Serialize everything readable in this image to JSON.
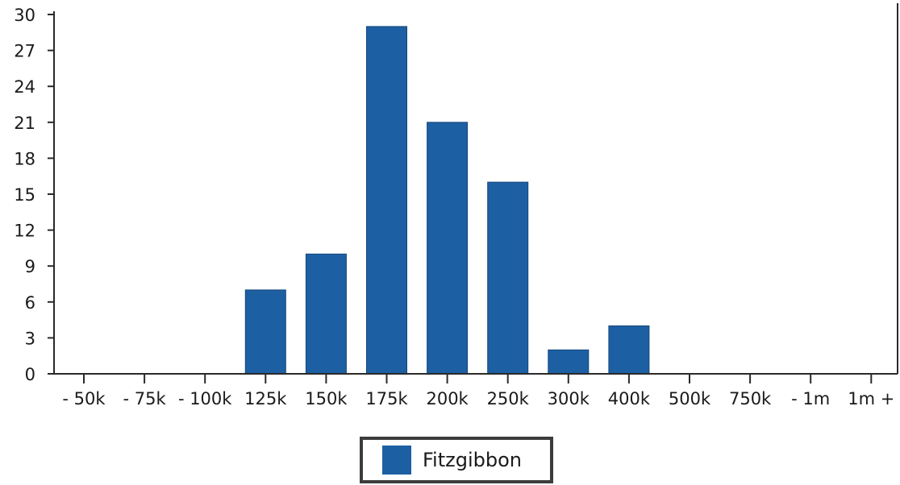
{
  "chart_data": {
    "type": "bar",
    "categories": [
      "- 50k",
      "- 75k",
      "- 100k",
      "125k",
      "150k",
      "175k",
      "200k",
      "250k",
      "300k",
      "400k",
      "500k",
      "750k",
      "- 1m",
      "1m +"
    ],
    "series": [
      {
        "name": "Fitzgibbon",
        "values": [
          0,
          0,
          0,
          7,
          10,
          29,
          21,
          16,
          2,
          4,
          0,
          0,
          0,
          0
        ]
      }
    ],
    "ylim": [
      0,
      30
    ],
    "yticks": [
      0,
      3,
      6,
      9,
      12,
      15,
      18,
      21,
      24,
      27,
      30
    ],
    "grid": false,
    "legend": "bottom-center",
    "bar_color": "#1d5fa3",
    "title": "",
    "xlabel": "",
    "ylabel": ""
  }
}
